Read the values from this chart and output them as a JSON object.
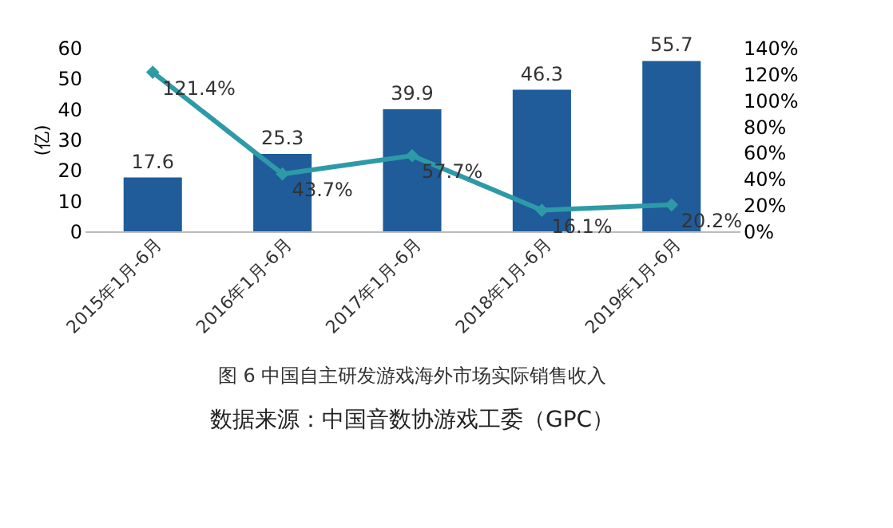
{
  "chart_data": {
    "type": "bar",
    "title": "图 6 中国自主研发游戏海外市场实际销售收入",
    "ylabel": "(亿)",
    "annotations": [
      "数据来源：中国音数协游戏工委（GPC）"
    ],
    "categories": [
      "2015年1月-6月",
      "2016年1月-6月",
      "2017年1月-6月",
      "2018年1月-6月",
      "2019年1月-6月"
    ],
    "series": [
      {
        "type": "bar",
        "color": "#1f5c99",
        "values": [
          17.6,
          25.3,
          39.9,
          46.3,
          55.7
        ],
        "value_labels": [
          "17.6",
          "25.3",
          "39.9",
          "46.3",
          "55.7"
        ]
      },
      {
        "type": "line",
        "axis": "y2",
        "color": "#2e9aa8",
        "marker": "diamond",
        "values": [
          121.4,
          43.7,
          57.7,
          16.1,
          20.2
        ],
        "value_labels": [
          "121.4%",
          "43.7%",
          "57.7%",
          "16.1%",
          "20.2%"
        ]
      }
    ],
    "ylim": [
      0,
      60
    ],
    "yticks": [
      0,
      10,
      20,
      30,
      40,
      50,
      60
    ],
    "y2lim": [
      0,
      140
    ],
    "y2ticks": [
      {
        "value": 0,
        "label": "0%"
      },
      {
        "value": 20,
        "label": "20%"
      },
      {
        "value": 40,
        "label": "40%"
      },
      {
        "value": 60,
        "label": "60%"
      },
      {
        "value": 80,
        "label": "80%"
      },
      {
        "value": 100,
        "label": "100%"
      },
      {
        "value": 120,
        "label": "120%"
      },
      {
        "value": 140,
        "label": "140%"
      }
    ],
    "grid": false
  }
}
